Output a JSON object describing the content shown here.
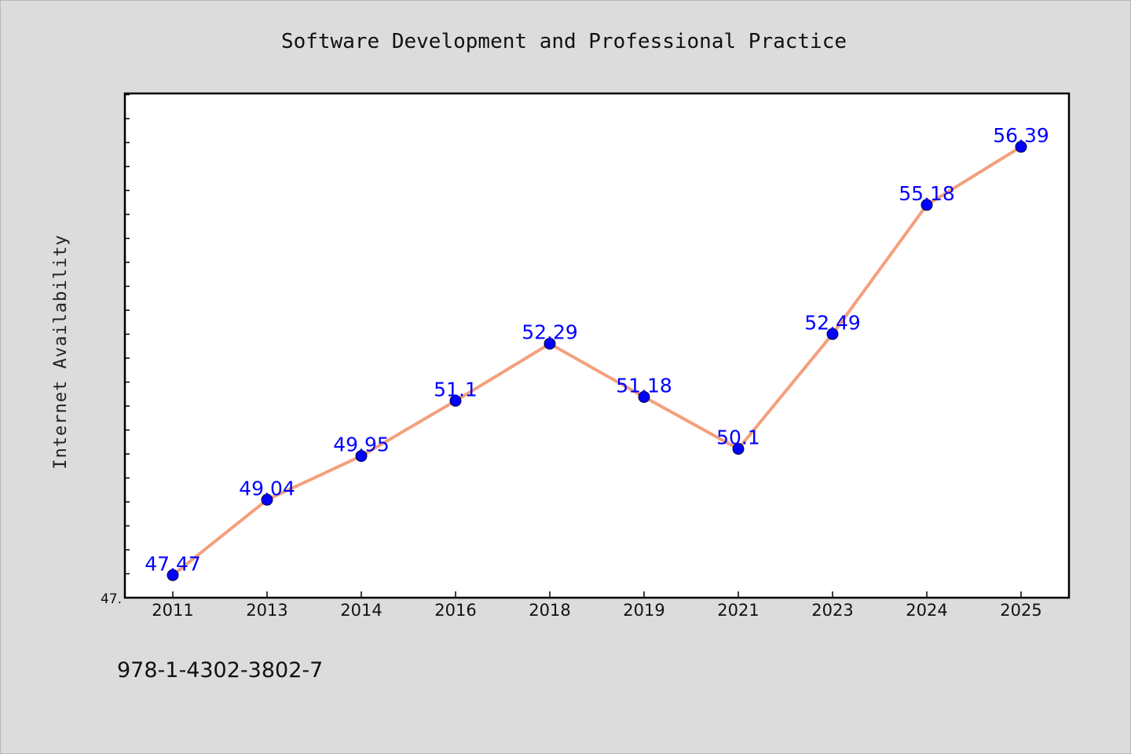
{
  "chart_data": {
    "type": "line",
    "title": "Software Development and Professional Practice",
    "ylabel": "Internet Availability",
    "xlabel": "",
    "categories": [
      "2011",
      "2013",
      "2014",
      "2016",
      "2018",
      "2019",
      "2021",
      "2023",
      "2024",
      "2025"
    ],
    "series": [
      {
        "values": [
          47.47,
          49.04,
          49.95,
          51.1,
          52.29,
          51.18,
          50.1,
          52.49,
          55.18,
          56.39
        ],
        "data_labels": [
          "47.47",
          "49.04",
          "49.95",
          "51.1",
          "52.29",
          "51.18",
          "50.1",
          "52.49",
          "55.18",
          "56.39"
        ],
        "line_color": "#f4a07c",
        "marker_color": "#0000ff"
      }
    ],
    "ylim": [
      47.0,
      57.5
    ],
    "ytick_label": "47.",
    "grid": false,
    "legend": "none"
  },
  "footer": {
    "isbn": "978-1-4302-3802-7"
  },
  "colors": {
    "background": "#dcdcdc",
    "plot_background": "#ffffff",
    "label_color": "#0000ff"
  }
}
